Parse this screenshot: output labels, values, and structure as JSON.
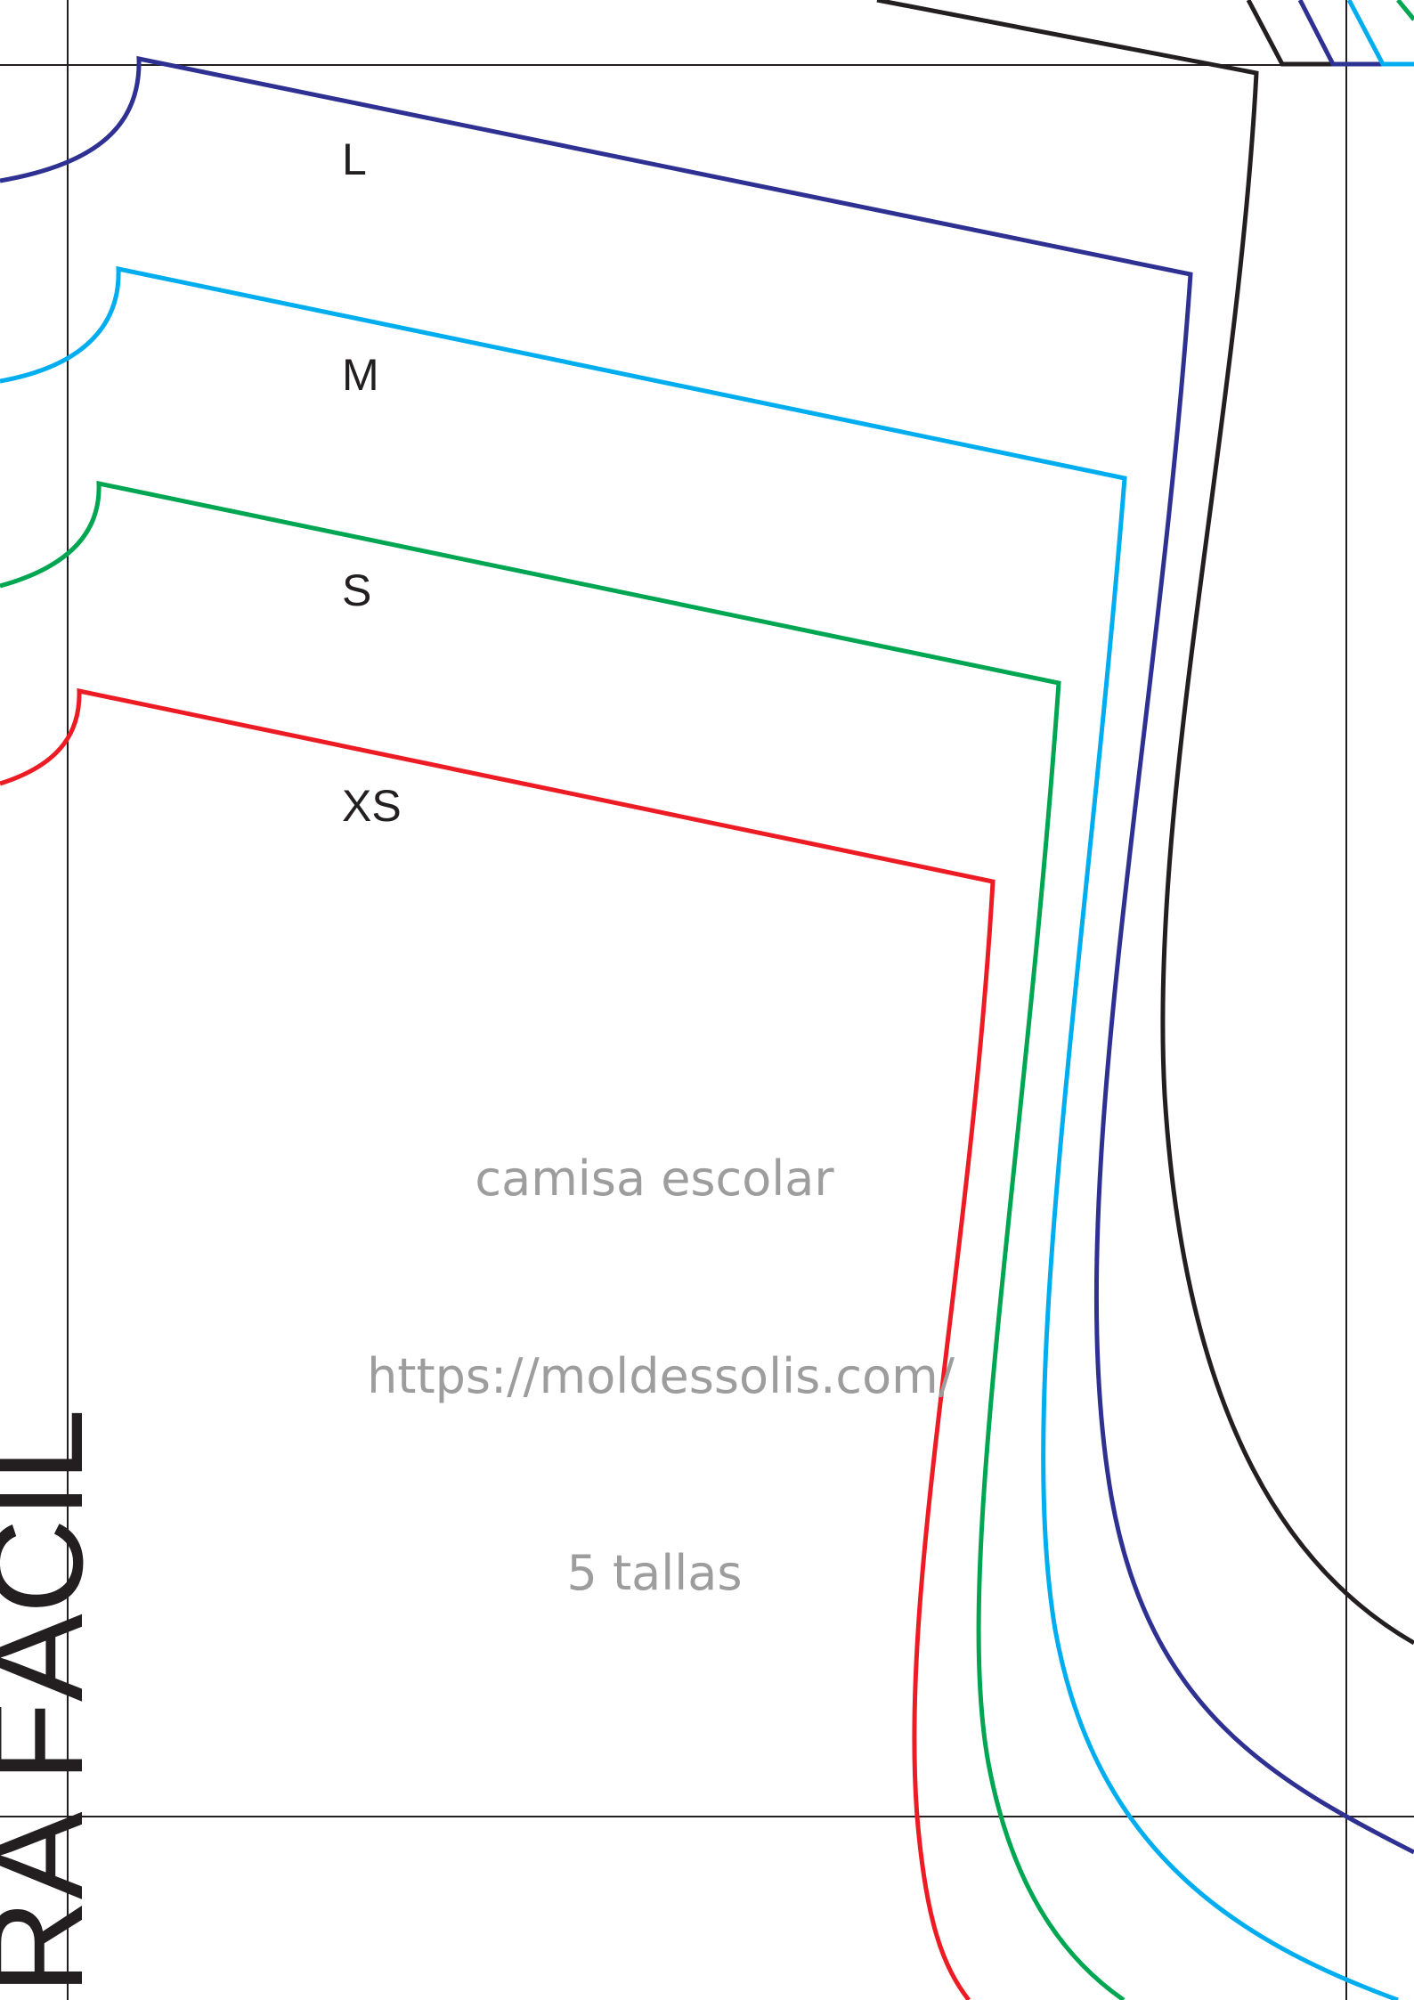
{
  "pattern": {
    "sizes": [
      {
        "label": "L",
        "color": "#2e3192"
      },
      {
        "label": "M",
        "color": "#00aeef"
      },
      {
        "label": "S",
        "color": "#00a651"
      },
      {
        "label": "XS",
        "color": "#ed1c24"
      }
    ],
    "outer_outline_color": "#231f20",
    "crop_line_color": "#231f20"
  },
  "watermark": {
    "title": "camisa escolar",
    "url": "https://moldessolis.com/",
    "sizes_note": "5 tallas"
  },
  "side_title": "RA FÁCIL"
}
